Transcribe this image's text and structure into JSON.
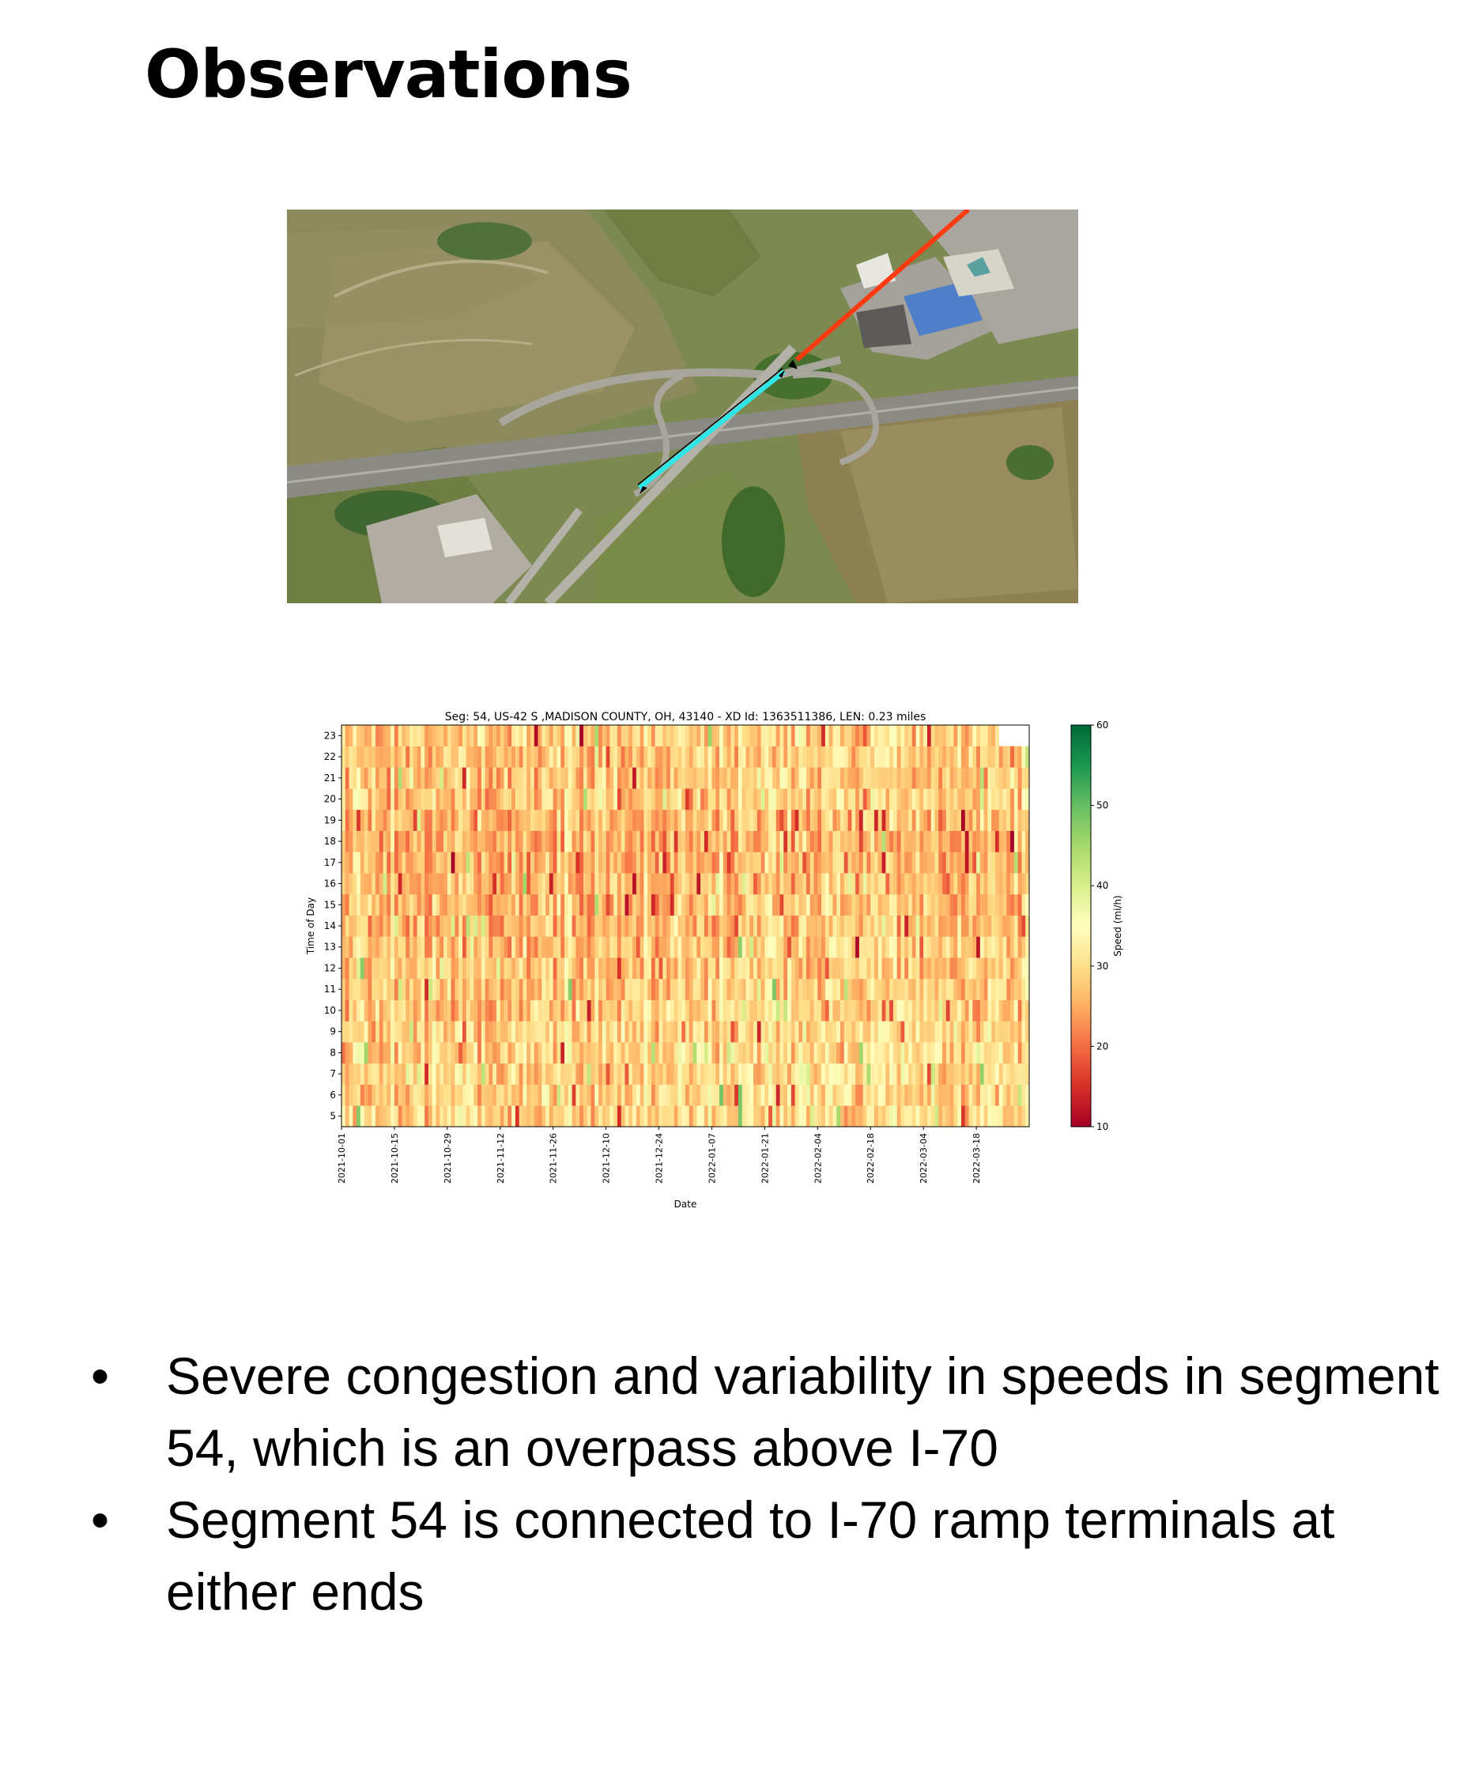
{
  "slide": {
    "title": "Observations"
  },
  "map": {
    "kind": "aerial satellite photo of a diamond interchange",
    "segment_colors": {
      "upstream": "#ff3b12",
      "segment": "#2ee6e6",
      "arrow": "#000000"
    }
  },
  "chart_data": {
    "type": "heatmap",
    "title": "Seg: 54, US-42 S ,MADISON COUNTY, OH, 43140 - XD Id: 1363511386, LEN: 0.23 miles",
    "xlabel": "Date",
    "ylabel": "Time of Day",
    "x_tick_labels": [
      "2021-10-01",
      "2021-10-15",
      "2021-10-29",
      "2021-11-12",
      "2021-11-26",
      "2021-12-10",
      "2021-12-24",
      "2022-01-07",
      "2022-01-21",
      "2022-02-04",
      "2022-02-18",
      "2022-03-04",
      "2022-03-18"
    ],
    "x_range": [
      "2021-10-01",
      "2022-03-31"
    ],
    "y_tick_labels": [
      "5",
      "6",
      "7",
      "8",
      "9",
      "10",
      "11",
      "12",
      "13",
      "14",
      "15",
      "16",
      "17",
      "18",
      "19",
      "20",
      "21",
      "22",
      "23"
    ],
    "y_range": [
      5,
      24
    ],
    "colorbar": {
      "label": "Speed (mi/h)",
      "ticks": [
        "10",
        "20",
        "30",
        "40",
        "50",
        "60"
      ],
      "range": [
        10,
        60
      ],
      "colormap": "RdYlGn"
    },
    "cell_values_note": "Speeds mostly 22-35 mi/h (orange-yellow), occasional dips to 12-18 mi/h, occasional highs to 40+ mi/h; hour 23 missing for the last days."
  },
  "bullets": [
    {
      "marker": "•",
      "text": "Severe congestion and variability in speeds in segment 54, which is an overpass above I-70"
    },
    {
      "marker": "•",
      "text": "Segment 54 is connected to I-70 ramp terminals at either ends"
    }
  ]
}
